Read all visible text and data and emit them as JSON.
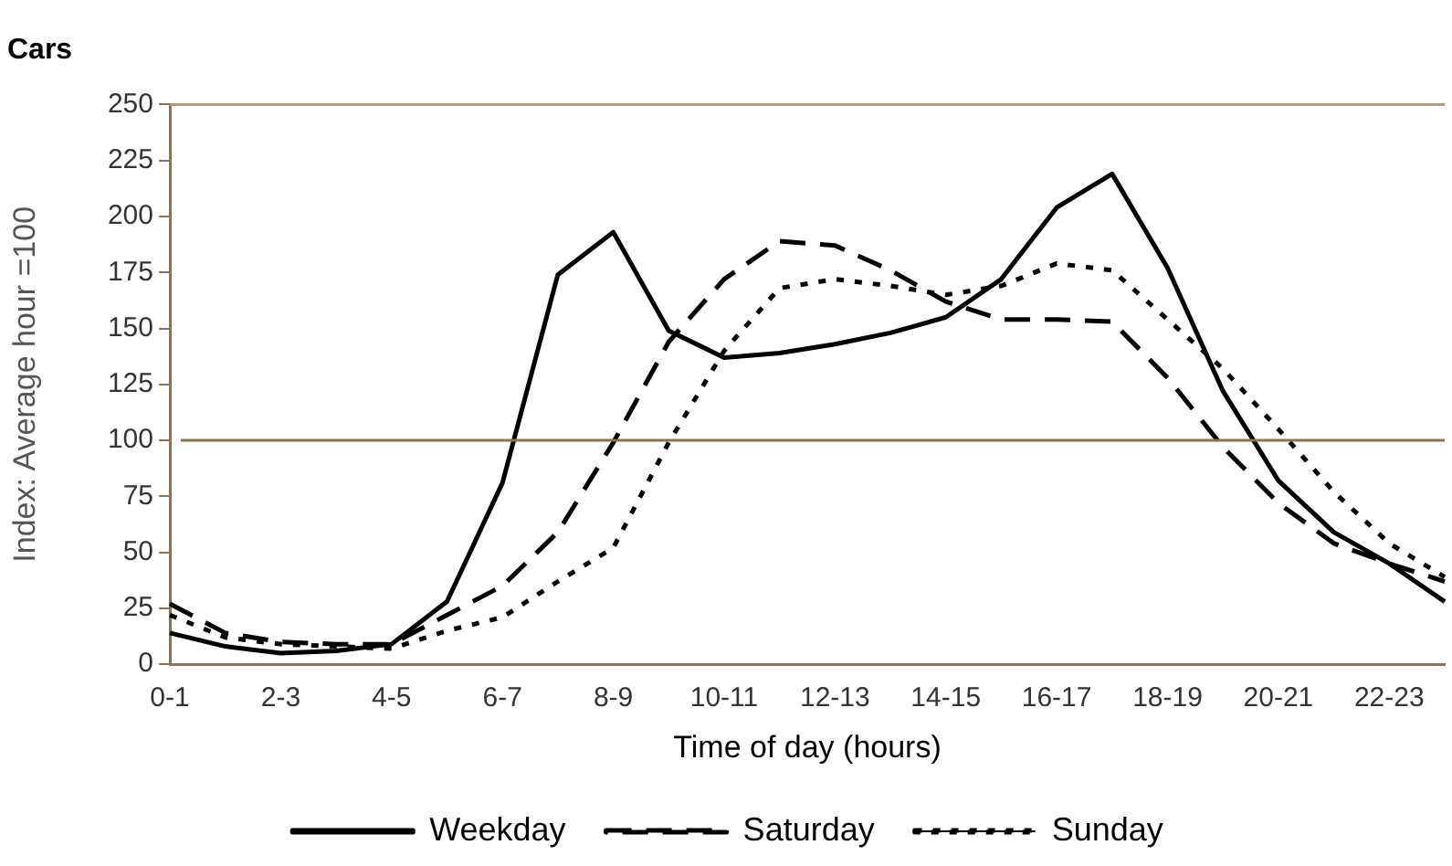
{
  "chart_data": {
    "type": "line",
    "title": "Cars",
    "xlabel": "Time of day (hours)",
    "ylabel": "Index: Average hour =100",
    "categories": [
      "0-1",
      null,
      "2-3",
      null,
      "4-5",
      null,
      "6-7",
      null,
      "8-9",
      null,
      "10-11",
      null,
      "12-13",
      null,
      "14-15",
      null,
      "16-17",
      null,
      "18-19",
      null,
      "20-21",
      null,
      "22-23",
      null
    ],
    "series": [
      {
        "name": "Weekday",
        "color": "#000000",
        "line_style": "solid",
        "values": [
          14,
          8,
          5,
          6,
          9,
          28,
          81,
          174,
          193,
          149,
          137,
          139,
          143,
          148,
          155,
          172,
          204,
          219,
          177,
          122,
          82,
          59,
          45,
          28
        ]
      },
      {
        "name": "Saturday",
        "color": "#000000",
        "line_style": "dashed",
        "values": [
          27,
          14,
          10,
          9,
          9,
          22,
          35,
          59,
          99,
          144,
          172,
          189,
          187,
          176,
          162,
          154,
          154,
          153,
          128,
          97,
          72,
          54,
          45,
          37
        ]
      },
      {
        "name": "Sunday",
        "color": "#000000",
        "line_style": "dotted",
        "values": [
          22,
          12,
          9,
          8,
          7,
          15,
          21,
          37,
          52,
          99,
          140,
          168,
          172,
          169,
          165,
          169,
          179,
          176,
          154,
          132,
          105,
          77,
          54,
          39
        ]
      }
    ],
    "ylim": [
      0,
      250
    ],
    "yticks": [
      0,
      25,
      50,
      75,
      100,
      125,
      150,
      175,
      200,
      225,
      250
    ],
    "ref_lines": [
      {
        "axis": "y",
        "value": 100,
        "color": "#8b7355"
      }
    ],
    "grid": false,
    "legend": "bottom",
    "marker": "none"
  }
}
